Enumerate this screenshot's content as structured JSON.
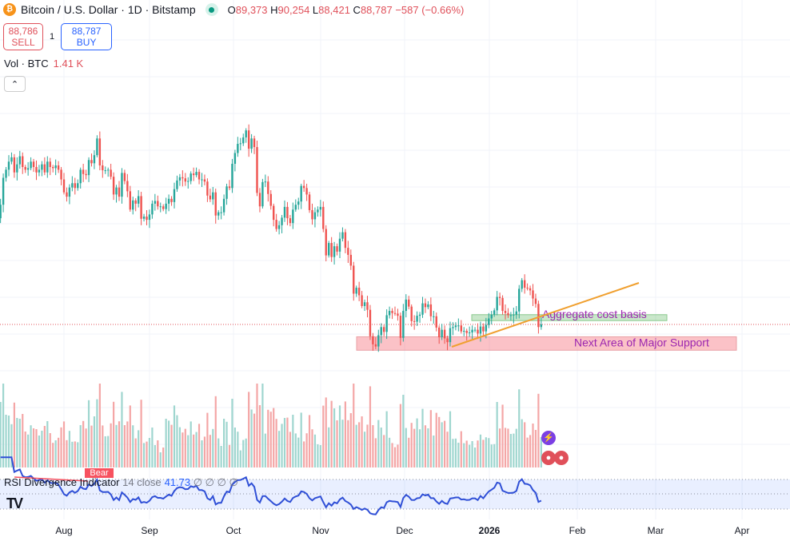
{
  "header": {
    "symbol_title": "Bitcoin / U.S. Dollar · 1D · Bitstamp",
    "open_label": "O",
    "open": "89,373",
    "high_label": "H",
    "high": "90,254",
    "low_label": "L",
    "low": "88,421",
    "close_label": "C",
    "close": "88,787",
    "change": "−587 (−0.66%)"
  },
  "trade": {
    "sell_price": "88,786",
    "sell_label": "SELL",
    "spread": "1",
    "buy_price": "88,787",
    "buy_label": "BUY"
  },
  "volume": {
    "label": "Vol · BTC",
    "value": "1.41 K"
  },
  "collapse_icon": "chevron-up-icon",
  "rsi": {
    "name": "RSI Divergence Indicator",
    "params": "14 close",
    "value": "41.73",
    "hidden_values": "∅ ∅ ∅ ∅",
    "bear_label": "Bear"
  },
  "annotations": {
    "cost_basis": "Aggregate cost basis",
    "support": "Next Area of Major Support"
  },
  "x_axis": [
    "Aug",
    "Sep",
    "Oct",
    "Nov",
    "Dec",
    "2026",
    "Feb",
    "Mar",
    "Apr"
  ],
  "colors": {
    "up": "#26a69a",
    "down": "#ef5350",
    "rsi": "#2f4fd6",
    "trendline": "#f0a030"
  },
  "chart_data": {
    "type": "candlestick",
    "interval": "1D",
    "start_date": "2025-07-08",
    "end_date": "2026-01-21",
    "close_thousands_usd": [
      108.5,
      111,
      116,
      117.5,
      119,
      119.8,
      117,
      118.5,
      120,
      118,
      117.5,
      117.8,
      119,
      118,
      117,
      117.5,
      118.5,
      117,
      119,
      118,
      117.8,
      118.3,
      117.5,
      115.7,
      113.3,
      112.5,
      114.2,
      115,
      114.1,
      115,
      117.5,
      116.7,
      116.5,
      119.3,
      118.7,
      120.2,
      123.3,
      118.3,
      117.4,
      117.4,
      117.5,
      116.2,
      112.9,
      114.2,
      112.5,
      116.9,
      115.4,
      113.5,
      110.1,
      111.8,
      111.2,
      112.6,
      108.4,
      108.8,
      108.2,
      109.2,
      111.2,
      111.7,
      110.7,
      110.7,
      110.2,
      111.2,
      112.1,
      111.5,
      113.9,
      115.5,
      116.1,
      115.9,
      115.3,
      115.4,
      116.8,
      116.5,
      117.1,
      115.7,
      115.7,
      115.3,
      112.7,
      112.0,
      113.3,
      109.0,
      109.6,
      109.6,
      112.1,
      114.4,
      114.1,
      118.6,
      120.6,
      122.3,
      122.4,
      123.5,
      124.8,
      121.4,
      123.3,
      121.7,
      113.2,
      110.7,
      115.2,
      115.3,
      113.0,
      110.8,
      108.2,
      106.5,
      107.2,
      108.6,
      110.6,
      108.5,
      107.6,
      110.1,
      111.0,
      111.6,
      114.5,
      114.1,
      112.9,
      110.0,
      108.3,
      109.6,
      110.1,
      110.6,
      106.5,
      101.6,
      103.9,
      101.3,
      103.3,
      102.3,
      104.7,
      105.9,
      103.0,
      101.7,
      99.7,
      94.5,
      95.6,
      94.2,
      92.2,
      92.9,
      91.5,
      86.6,
      85.1,
      84.7,
      86.8,
      88.3,
      87.4,
      90.5,
      91.3,
      90.9,
      90.8,
      90.4,
      86.3,
      91.3,
      93.4,
      92.1,
      89.4,
      89.3,
      90.4,
      90.6,
      92.7,
      92.0,
      92.5,
      90.3,
      90.3,
      88.2,
      86.4,
      87.8,
      86.2,
      85.5,
      88.1,
      88.3,
      88.6,
      88.6,
      87.5,
      87.6,
      87.2,
      87.3,
      87.8,
      87.8,
      87.1,
      88.4,
      87.5,
      88.7,
      89.9,
      90.6,
      91.4,
      93.9,
      93.7,
      91.3,
      90.9,
      90.5,
      90.5,
      90.6,
      91.2,
      95.4,
      97.0,
      95.6,
      95.5,
      95.1,
      93.6,
      92.6,
      88.3,
      88.8
    ],
    "last_price": 88787,
    "cost_basis_zone_thousands": [
      89.5,
      90.6
    ],
    "support_zone_thousands": [
      84.0,
      86.5
    ]
  }
}
